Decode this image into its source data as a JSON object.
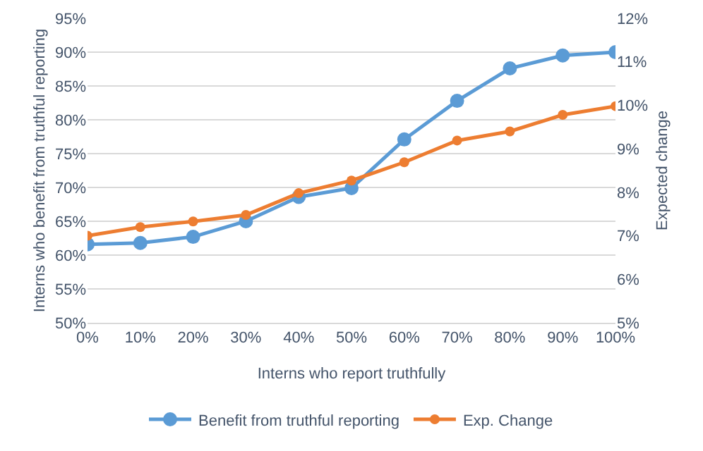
{
  "chart_data": {
    "type": "line",
    "xlabel": "Interns who report truthfully",
    "ylabel": "Interns who benefit from truthful reporting",
    "y2label": "Expected change",
    "x": [
      0,
      10,
      20,
      30,
      40,
      50,
      60,
      70,
      80,
      90,
      100
    ],
    "series": [
      {
        "name": "Benefit from truthful reporting",
        "color": "#5b9bd5",
        "values": [
          61.6,
          61.8,
          62.7,
          65.0,
          68.6,
          69.9,
          77.1,
          82.8,
          87.6,
          89.5,
          90.0
        ]
      },
      {
        "name": "Exp. Change",
        "color": "#ed7d31",
        "axis": "y2",
        "values": [
          7.0,
          7.2,
          7.33,
          7.48,
          7.98,
          8.27,
          8.69,
          9.19,
          9.4,
          9.78,
          9.98
        ]
      }
    ],
    "xlim": [
      0,
      100
    ],
    "xticks": [
      {
        "value": 0,
        "label": "0%"
      },
      {
        "value": 10,
        "label": "10%"
      },
      {
        "value": 20,
        "label": "20%"
      },
      {
        "value": 30,
        "label": "30%"
      },
      {
        "value": 40,
        "label": "40%"
      },
      {
        "value": 50,
        "label": "50%"
      },
      {
        "value": 60,
        "label": "60%"
      },
      {
        "value": 70,
        "label": "70%"
      },
      {
        "value": 80,
        "label": "80%"
      },
      {
        "value": 90,
        "label": "90%"
      },
      {
        "value": 100,
        "label": "100%"
      }
    ],
    "ylim": [
      50,
      95
    ],
    "yticks": [
      {
        "value": 50,
        "label": "50%"
      },
      {
        "value": 55,
        "label": "55%"
      },
      {
        "value": 60,
        "label": "60%"
      },
      {
        "value": 65,
        "label": "65%"
      },
      {
        "value": 70,
        "label": "70%"
      },
      {
        "value": 75,
        "label": "75%"
      },
      {
        "value": 80,
        "label": "80%"
      },
      {
        "value": 85,
        "label": "85%"
      },
      {
        "value": 90,
        "label": "90%"
      },
      {
        "value": 95,
        "label": "95%"
      }
    ],
    "y2lim": [
      5,
      12
    ],
    "y2ticks": [
      {
        "value": 5,
        "label": "5%"
      },
      {
        "value": 6,
        "label": "6%"
      },
      {
        "value": 7,
        "label": "7%"
      },
      {
        "value": 8,
        "label": "8%"
      },
      {
        "value": 9,
        "label": "9%"
      },
      {
        "value": 10,
        "label": "10%"
      },
      {
        "value": 11,
        "label": "11%"
      },
      {
        "value": 12,
        "label": "12%"
      }
    ],
    "grid": "y",
    "legend": "bottom",
    "marker": "circle",
    "line_style": "solid"
  }
}
